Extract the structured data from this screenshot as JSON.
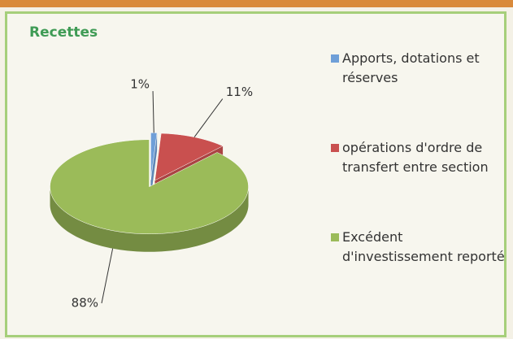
{
  "chart_data": {
    "type": "pie",
    "title": "Recettes",
    "categories": [
      "Apports, dotations et réserves",
      "opérations d'ordre de transfert entre section",
      "Excédent d'investissement reporté"
    ],
    "values": [
      1,
      11,
      88
    ],
    "value_labels": [
      "1%",
      "11%",
      "88%"
    ],
    "colors": [
      "#6f9fd8",
      "#c9504f",
      "#9bbb59"
    ]
  }
}
